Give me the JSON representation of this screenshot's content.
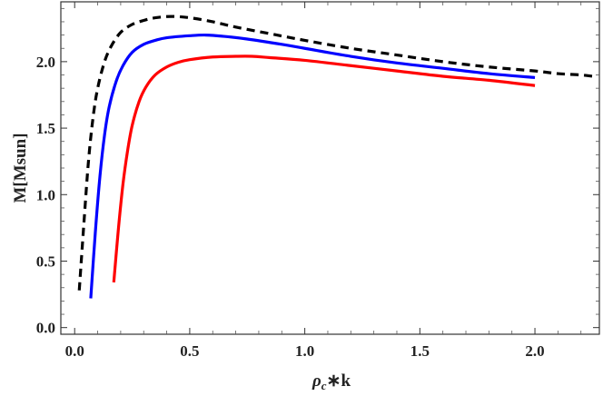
{
  "chart_data": {
    "type": "line",
    "title": "",
    "xlabel": "ρc∗k",
    "xlabel_main": "ρ",
    "xlabel_sub": "c",
    "xlabel_tail": "∗k",
    "ylabel": "M[Msun]",
    "xlim": [
      -0.06,
      2.28
    ],
    "ylim": [
      -0.05,
      2.45
    ],
    "xticks": [
      0.0,
      0.5,
      1.0,
      1.5,
      2.0
    ],
    "xtick_labels": [
      "0.0",
      "0.5",
      "1.0",
      "1.5",
      "2.0"
    ],
    "yticks": [
      0.0,
      0.5,
      1.0,
      1.5,
      2.0
    ],
    "ytick_labels": [
      "0.0",
      "0.5",
      "1.0",
      "1.5",
      "2.0"
    ],
    "grid": false,
    "legend": "none",
    "series": [
      {
        "color": "#000000",
        "dash": "dashed",
        "x": [
          0.02,
          0.04,
          0.06,
          0.08,
          0.1,
          0.13,
          0.16,
          0.2,
          0.25,
          0.3,
          0.35,
          0.42,
          0.5,
          0.6,
          0.7,
          0.85,
          1.0,
          1.2,
          1.4,
          1.6,
          1.8,
          2.0,
          2.1,
          2.2,
          2.25
        ],
        "y": [
          0.28,
          0.78,
          1.25,
          1.58,
          1.8,
          2.0,
          2.12,
          2.22,
          2.28,
          2.31,
          2.33,
          2.34,
          2.33,
          2.3,
          2.26,
          2.21,
          2.16,
          2.1,
          2.05,
          2.0,
          1.96,
          1.93,
          1.91,
          1.9,
          1.89
        ]
      },
      {
        "color": "#0000ff",
        "dash": "solid",
        "x": [
          0.07,
          0.09,
          0.11,
          0.13,
          0.15,
          0.18,
          0.21,
          0.25,
          0.3,
          0.35,
          0.4,
          0.5,
          0.57,
          0.65,
          0.75,
          0.9,
          1.0,
          1.2,
          1.4,
          1.6,
          1.8,
          2.0
        ],
        "y": [
          0.22,
          0.72,
          1.14,
          1.45,
          1.66,
          1.85,
          1.97,
          2.07,
          2.13,
          2.16,
          2.18,
          2.195,
          2.2,
          2.19,
          2.17,
          2.13,
          2.1,
          2.04,
          1.99,
          1.95,
          1.91,
          1.88
        ]
      },
      {
        "color": "#ff0000",
        "dash": "solid",
        "x": [
          0.17,
          0.19,
          0.21,
          0.23,
          0.25,
          0.28,
          0.31,
          0.35,
          0.4,
          0.45,
          0.5,
          0.6,
          0.7,
          0.77,
          0.85,
          1.0,
          1.2,
          1.4,
          1.6,
          1.8,
          2.0
        ],
        "y": [
          0.34,
          0.74,
          1.08,
          1.33,
          1.52,
          1.7,
          1.81,
          1.9,
          1.96,
          1.995,
          2.015,
          2.035,
          2.04,
          2.04,
          2.03,
          2.01,
          1.97,
          1.93,
          1.89,
          1.86,
          1.82
        ]
      }
    ]
  }
}
